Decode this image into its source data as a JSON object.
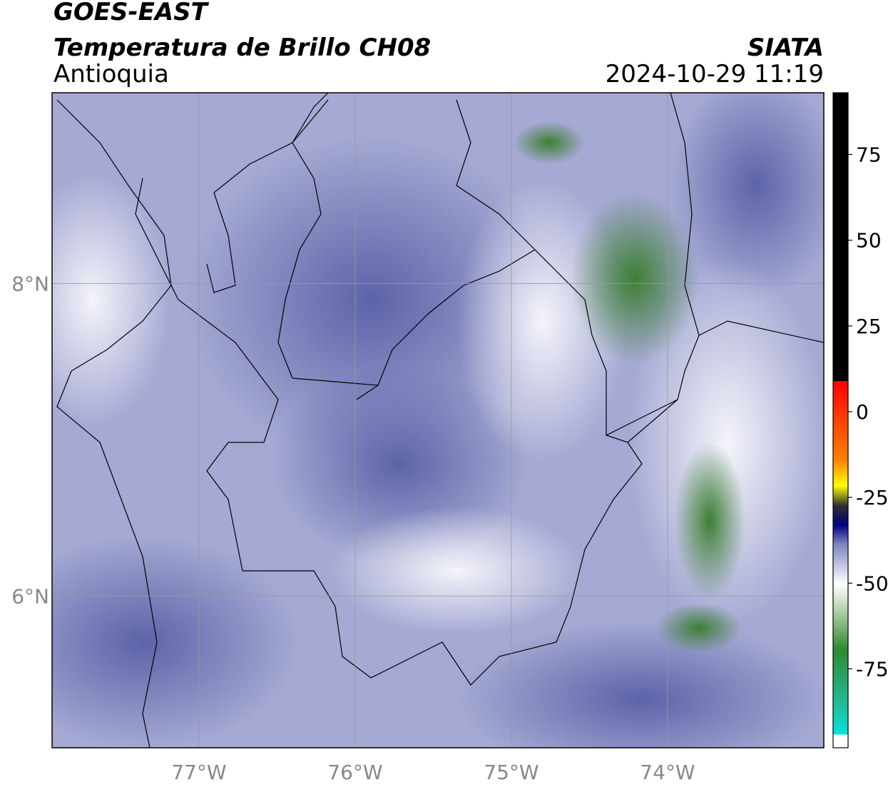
{
  "header": {
    "satellite": "GOES-EAST",
    "product": "Temperatura de Brillo CH08",
    "region": "Antioquia",
    "source": "SIATA",
    "datetime": "2024-10-29 11:19"
  },
  "map": {
    "xlim": [
      -77.94,
      -73.0
    ],
    "ylim": [
      5.03,
      9.22
    ],
    "xticks": [
      {
        "value": -77,
        "label": "77°W"
      },
      {
        "value": -76,
        "label": "76°W"
      },
      {
        "value": -75,
        "label": "75°W"
      },
      {
        "value": -74,
        "label": "74°W"
      }
    ],
    "yticks": [
      {
        "value": 8,
        "label": "8°N"
      },
      {
        "value": 6,
        "label": "6°N"
      }
    ],
    "grid": true
  },
  "colorbar": {
    "lim": [
      -98,
      93
    ],
    "ticks": [
      75,
      50,
      25,
      0,
      -25,
      -50,
      -75
    ]
  }
}
